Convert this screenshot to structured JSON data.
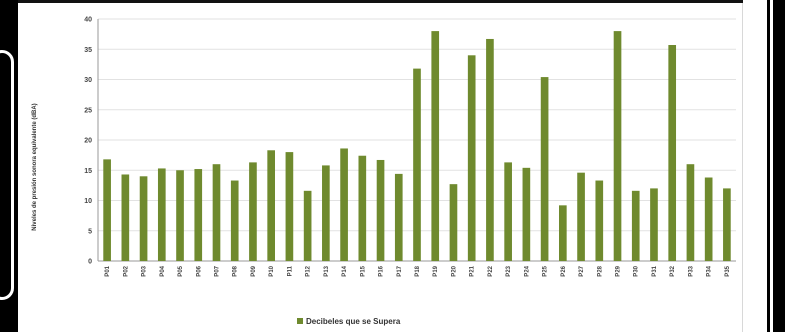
{
  "chart_data": {
    "type": "bar",
    "title": "",
    "ylabel": "Niveles de presión sonora equivalente (dBA)",
    "xlabel": "",
    "ylim": [
      0,
      40
    ],
    "yticks": [
      0,
      5,
      10,
      15,
      20,
      25,
      30,
      35,
      40
    ],
    "grid": true,
    "legend_position": "bottom",
    "categories": [
      "P01",
      "P02",
      "P03",
      "P04",
      "P05",
      "P06",
      "P07",
      "P08",
      "P09",
      "P10",
      "P11",
      "P12",
      "P13",
      "P14",
      "P15",
      "P16",
      "P17",
      "P18",
      "P19",
      "P20",
      "P21",
      "P22",
      "P23",
      "P24",
      "P25",
      "P26",
      "P27",
      "P28",
      "P29",
      "P30",
      "P31",
      "P32",
      "P33",
      "P34",
      "P35"
    ],
    "series": [
      {
        "name": "Decibeles que se Supera",
        "color": "#6f8a2e",
        "values": [
          16.8,
          14.3,
          14.0,
          15.3,
          15.0,
          15.2,
          16.0,
          13.3,
          16.3,
          18.3,
          18.0,
          11.6,
          15.8,
          18.6,
          17.4,
          16.7,
          14.4,
          31.8,
          38.0,
          12.7,
          34.0,
          36.7,
          16.3,
          15.4,
          30.4,
          9.2,
          14.6,
          13.3,
          38.0,
          11.6,
          12.0,
          35.7,
          16.0,
          13.8,
          12.0
        ]
      }
    ]
  }
}
